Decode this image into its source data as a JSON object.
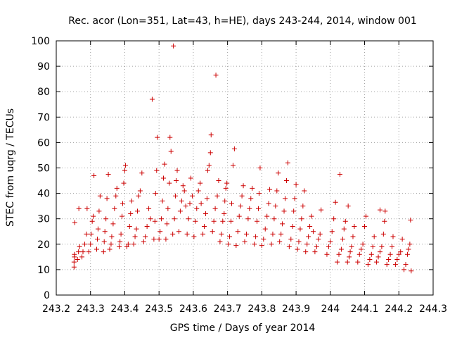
{
  "chart_data": {
    "type": "scatter",
    "title": "Rec. acor (Lon=351, Lat=43, h=HE), days 243-244, 2014, window 001",
    "xlabel": "GPS time / Days of year 2014",
    "ylabel": "STEC from uqrg / TECUs",
    "xlim": [
      243.2,
      244.3
    ],
    "ylim": [
      0,
      100
    ],
    "xticks": [
      "243.2",
      "243.3",
      "243.4",
      "243.5",
      "243.6",
      "243.7",
      "243.8",
      "243.9",
      "244",
      "244.1",
      "244.2",
      "244.3"
    ],
    "yticks": [
      "0",
      "10",
      "20",
      "30",
      "40",
      "50",
      "60",
      "70",
      "80",
      "90",
      "100"
    ],
    "grid": true,
    "marker": "plus",
    "color": "#cc0000",
    "series": [
      {
        "points": [
          [
            243.252,
            11
          ],
          [
            243.252,
            13
          ],
          [
            243.253,
            15
          ],
          [
            243.253,
            16
          ],
          [
            243.254,
            28.5
          ],
          [
            243.262,
            14
          ],
          [
            243.265,
            17
          ],
          [
            243.268,
            19
          ],
          [
            243.266,
            34
          ],
          [
            243.275,
            15
          ],
          [
            243.278,
            17
          ],
          [
            243.283,
            20
          ],
          [
            243.288,
            24
          ],
          [
            243.29,
            34
          ],
          [
            243.295,
            17
          ],
          [
            243.3,
            20
          ],
          [
            243.302,
            24
          ],
          [
            243.305,
            29
          ],
          [
            243.308,
            31
          ],
          [
            243.31,
            47
          ],
          [
            243.318,
            18
          ],
          [
            243.32,
            22
          ],
          [
            243.322,
            26
          ],
          [
            243.325,
            33
          ],
          [
            243.328,
            39
          ],
          [
            243.338,
            17
          ],
          [
            243.34,
            21
          ],
          [
            243.342,
            25
          ],
          [
            243.345,
            30
          ],
          [
            243.348,
            38
          ],
          [
            243.352,
            47.5
          ],
          [
            243.356,
            18
          ],
          [
            243.36,
            20
          ],
          [
            243.362,
            23
          ],
          [
            243.366,
            28
          ],
          [
            243.37,
            34
          ],
          [
            243.374,
            39
          ],
          [
            243.377,
            42
          ],
          [
            243.384,
            19
          ],
          [
            243.386,
            21
          ],
          [
            243.389,
            24
          ],
          [
            243.392,
            31
          ],
          [
            243.394,
            36
          ],
          [
            243.397,
            44
          ],
          [
            243.4,
            49
          ],
          [
            243.402,
            51
          ],
          [
            243.406,
            19
          ],
          [
            243.41,
            20
          ],
          [
            243.414,
            27
          ],
          [
            243.417,
            32
          ],
          [
            243.42,
            37
          ],
          [
            243.426,
            20
          ],
          [
            243.43,
            23
          ],
          [
            243.434,
            26
          ],
          [
            243.437,
            33
          ],
          [
            243.44,
            39
          ],
          [
            243.445,
            41
          ],
          [
            243.45,
            48
          ],
          [
            243.455,
            21
          ],
          [
            243.46,
            23
          ],
          [
            243.465,
            27
          ],
          [
            243.47,
            34
          ],
          [
            243.475,
            30
          ],
          [
            243.48,
            77
          ],
          [
            243.485,
            22
          ],
          [
            243.488,
            29
          ],
          [
            243.49,
            40
          ],
          [
            243.493,
            49
          ],
          [
            243.495,
            62
          ],
          [
            243.5,
            22
          ],
          [
            243.503,
            25
          ],
          [
            243.507,
            30
          ],
          [
            243.51,
            37
          ],
          [
            243.513,
            46
          ],
          [
            243.516,
            51.5
          ],
          [
            243.52,
            22
          ],
          [
            243.523,
            28
          ],
          [
            243.526,
            34
          ],
          [
            243.53,
            44
          ],
          [
            243.532,
            62
          ],
          [
            243.535,
            56.5
          ],
          [
            243.54,
            24
          ],
          [
            243.542,
            98
          ],
          [
            243.545,
            30
          ],
          [
            243.548,
            39
          ],
          [
            243.55,
            45
          ],
          [
            243.553,
            49
          ],
          [
            243.558,
            25
          ],
          [
            243.562,
            33
          ],
          [
            243.566,
            37
          ],
          [
            243.57,
            43
          ],
          [
            243.574,
            41
          ],
          [
            243.578,
            35
          ],
          [
            243.582,
            24
          ],
          [
            243.586,
            30
          ],
          [
            243.59,
            36
          ],
          [
            243.593,
            46
          ],
          [
            243.597,
            39
          ],
          [
            243.602,
            23
          ],
          [
            243.606,
            29
          ],
          [
            243.61,
            34
          ],
          [
            243.615,
            41
          ],
          [
            243.62,
            44
          ],
          [
            243.623,
            36
          ],
          [
            243.628,
            24
          ],
          [
            243.632,
            27
          ],
          [
            243.636,
            32
          ],
          [
            243.64,
            38
          ],
          [
            243.642,
            49
          ],
          [
            243.646,
            51
          ],
          [
            243.65,
            56
          ],
          [
            243.652,
            63
          ],
          [
            243.656,
            25
          ],
          [
            243.66,
            29
          ],
          [
            243.664,
            34
          ],
          [
            243.666,
            86.5
          ],
          [
            243.67,
            39
          ],
          [
            243.674,
            45
          ],
          [
            243.678,
            21
          ],
          [
            243.682,
            24
          ],
          [
            243.686,
            29
          ],
          [
            243.69,
            32
          ],
          [
            243.692,
            37
          ],
          [
            243.695,
            42
          ],
          [
            243.698,
            44
          ],
          [
            243.702,
            20
          ],
          [
            243.706,
            23
          ],
          [
            243.71,
            29
          ],
          [
            243.712,
            36
          ],
          [
            243.716,
            51
          ],
          [
            243.72,
            57.5
          ],
          [
            243.725,
            19.5
          ],
          [
            243.73,
            25
          ],
          [
            243.734,
            31
          ],
          [
            243.738,
            35
          ],
          [
            243.742,
            39
          ],
          [
            243.746,
            43
          ],
          [
            243.75,
            21
          ],
          [
            243.755,
            24
          ],
          [
            243.76,
            30
          ],
          [
            243.764,
            34
          ],
          [
            243.768,
            38
          ],
          [
            243.772,
            42
          ],
          [
            243.778,
            20
          ],
          [
            243.782,
            23
          ],
          [
            243.786,
            29
          ],
          [
            243.79,
            34
          ],
          [
            243.792,
            40
          ],
          [
            243.795,
            50
          ],
          [
            243.8,
            19.5
          ],
          [
            243.805,
            22
          ],
          [
            243.81,
            26
          ],
          [
            243.815,
            31
          ],
          [
            243.82,
            36
          ],
          [
            243.823,
            41.5
          ],
          [
            243.828,
            20
          ],
          [
            243.832,
            24
          ],
          [
            243.836,
            30
          ],
          [
            243.84,
            35
          ],
          [
            243.844,
            41
          ],
          [
            243.848,
            48
          ],
          [
            243.852,
            21
          ],
          [
            243.856,
            24
          ],
          [
            243.86,
            28
          ],
          [
            243.865,
            33
          ],
          [
            243.868,
            38
          ],
          [
            243.872,
            45
          ],
          [
            243.876,
            52
          ],
          [
            243.88,
            19
          ],
          [
            243.885,
            22
          ],
          [
            243.89,
            27
          ],
          [
            243.893,
            33
          ],
          [
            243.896,
            38
          ],
          [
            243.9,
            43.5
          ],
          [
            243.904,
            18
          ],
          [
            243.908,
            21
          ],
          [
            243.912,
            26
          ],
          [
            243.916,
            30
          ],
          [
            243.92,
            35
          ],
          [
            243.924,
            41
          ],
          [
            243.928,
            17
          ],
          [
            243.932,
            20
          ],
          [
            243.936,
            23
          ],
          [
            243.94,
            27
          ],
          [
            243.945,
            31
          ],
          [
            243.95,
            25
          ],
          [
            243.955,
            17
          ],
          [
            243.96,
            19
          ],
          [
            243.965,
            22
          ],
          [
            243.97,
            24
          ],
          [
            243.973,
            33.5
          ],
          [
            243.99,
            16
          ],
          [
            243.995,
            19
          ],
          [
            244.0,
            21
          ],
          [
            244.005,
            25
          ],
          [
            244.01,
            30
          ],
          [
            244.015,
            36.5
          ],
          [
            244.02,
            13
          ],
          [
            244.025,
            16
          ],
          [
            244.028,
            47.5
          ],
          [
            244.032,
            18
          ],
          [
            244.036,
            22
          ],
          [
            244.04,
            26
          ],
          [
            244.044,
            29
          ],
          [
            244.05,
            13
          ],
          [
            244.055,
            15
          ],
          [
            244.058,
            17
          ],
          [
            244.062,
            19
          ],
          [
            244.066,
            23
          ],
          [
            244.07,
            27
          ],
          [
            244.052,
            35
          ],
          [
            244.08,
            13
          ],
          [
            244.085,
            16
          ],
          [
            244.09,
            18
          ],
          [
            244.095,
            20
          ],
          [
            244.1,
            27
          ],
          [
            244.104,
            31
          ],
          [
            244.11,
            12
          ],
          [
            244.115,
            14
          ],
          [
            244.12,
            16
          ],
          [
            244.124,
            19
          ],
          [
            244.128,
            23
          ],
          [
            244.135,
            13
          ],
          [
            244.14,
            15
          ],
          [
            244.145,
            17
          ],
          [
            244.15,
            19
          ],
          [
            244.155,
            24
          ],
          [
            244.158,
            29
          ],
          [
            244.145,
            33.5
          ],
          [
            244.16,
            33
          ],
          [
            244.165,
            12
          ],
          [
            244.17,
            14
          ],
          [
            244.175,
            16
          ],
          [
            244.18,
            19
          ],
          [
            244.183,
            23
          ],
          [
            244.19,
            12
          ],
          [
            244.195,
            14
          ],
          [
            244.2,
            16
          ],
          [
            244.205,
            17
          ],
          [
            244.21,
            22
          ],
          [
            244.215,
            10
          ],
          [
            244.22,
            12
          ],
          [
            244.225,
            16
          ],
          [
            244.228,
            18
          ],
          [
            244.232,
            20
          ],
          [
            244.234,
            29.5
          ],
          [
            244.236,
            9.5
          ]
        ]
      }
    ]
  }
}
